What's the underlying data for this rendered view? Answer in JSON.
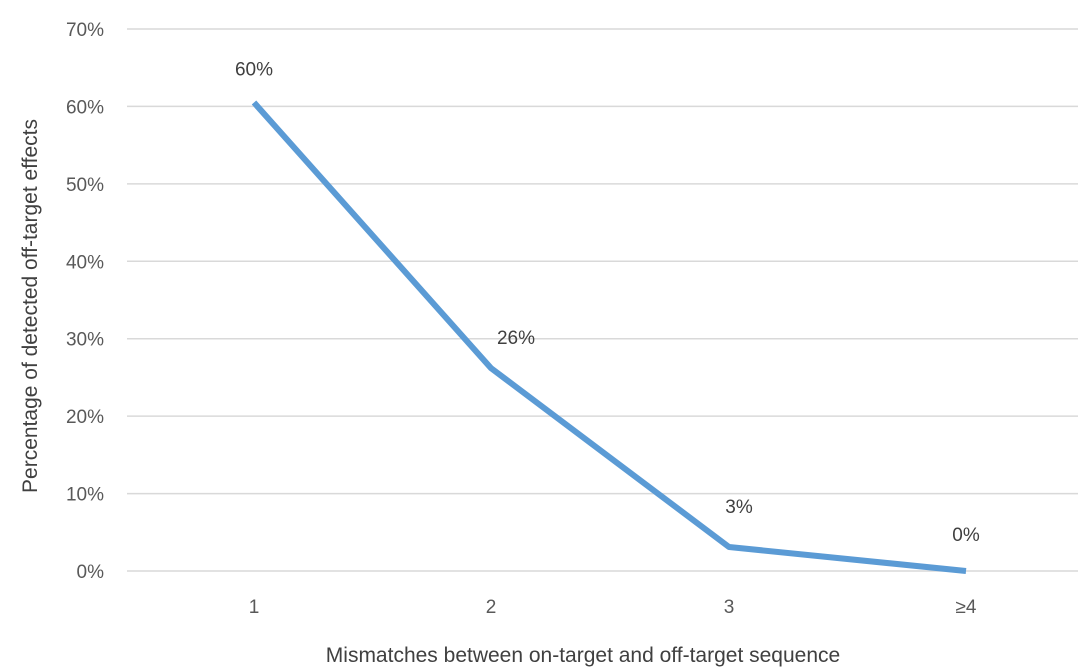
{
  "chart_data": {
    "type": "line",
    "categories": [
      "1",
      "2",
      "3",
      "≥4"
    ],
    "values": [
      0.605,
      0.262,
      0.031,
      0.0
    ],
    "data_labels": [
      "60%",
      "26%",
      "3%",
      "0%"
    ],
    "xlabel": "Mismatches between on-target and off-target sequence",
    "ylabel": "Percentage of detected off-target effects",
    "ylim": [
      0,
      0.7
    ],
    "yticks": [
      0,
      0.1,
      0.2,
      0.3,
      0.4,
      0.5,
      0.6,
      0.7
    ],
    "ytick_labels": [
      "0%",
      "10%",
      "20%",
      "30%",
      "40%",
      "50%",
      "60%",
      "70%"
    ],
    "grid": true,
    "legend": "none",
    "line_color": "#5b9bd5"
  }
}
